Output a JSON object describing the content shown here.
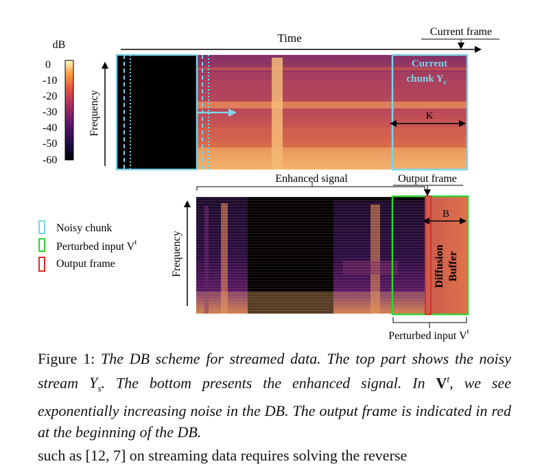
{
  "figure": {
    "colorbar": {
      "unit": "dB",
      "ticks": [
        "0",
        "-10",
        "-20",
        "-30",
        "-40",
        "-50",
        "-60"
      ]
    },
    "top_panel": {
      "x_label": "Time",
      "y_label": "Frequency",
      "current_frame_label": "Current frame",
      "current_chunk_label_line1": "Current",
      "current_chunk_label_line2": "chunk Y",
      "current_chunk_subscript": "c",
      "k_label": "K"
    },
    "bottom_panel": {
      "y_label": "Frequency",
      "enhanced_signal_label": "Enhanced signal",
      "output_frame_label": "Output frame",
      "b_label": "B",
      "diffusion_label": "Diffusion",
      "buffer_label": "Buffer",
      "perturbed_input_label": "Perturbed input V",
      "perturbed_input_sup": "t"
    },
    "legend": [
      {
        "label": "Noisy chunk",
        "color": "#7fd3e8"
      },
      {
        "label": "Perturbed input V",
        "sup": "t",
        "color": "#2ecc2e"
      },
      {
        "label": "Output frame",
        "color": "#e03030"
      }
    ],
    "colors": {
      "noisy_chunk": "#7fd3e8",
      "perturbed_input": "#34d134",
      "output_frame": "#e02a2a"
    }
  },
  "caption": {
    "prefix": "Figure 1: ",
    "part1": "The DB scheme for streamed data. The top part shows the noisy stream ",
    "ys_main": "Y",
    "ys_sub": "s",
    "part2": ". The bottom presents the enhanced signal. In ",
    "v_bold": "V",
    "v_sup": "t",
    "part3": ", we see exponentially increasing noise in the DB. The output frame is indicated in red at the beginning of the DB."
  },
  "body_text": {
    "next_line": "such as [12, 7] on streaming data requires solving the reverse"
  }
}
